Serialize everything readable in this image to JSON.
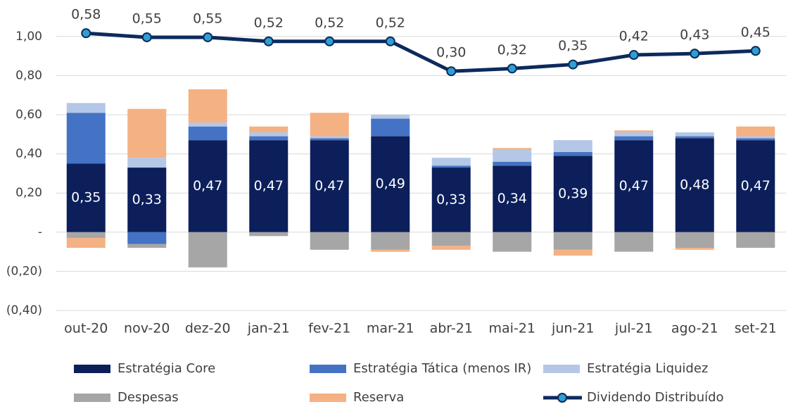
{
  "chart_data": {
    "type": "bar",
    "stacked": true,
    "categories": [
      "out-20",
      "nov-20",
      "dez-20",
      "jan-21",
      "fev-21",
      "mar-21",
      "abr-21",
      "mai-21",
      "jun-21",
      "jul-21",
      "ago-21",
      "set-21"
    ],
    "series": [
      {
        "name": "Estratégia Core",
        "color": "#0c1f5b",
        "values": [
          0.35,
          0.33,
          0.47,
          0.47,
          0.47,
          0.49,
          0.33,
          0.34,
          0.39,
          0.47,
          0.48,
          0.47
        ],
        "value_labels": [
          "0,35",
          "0,33",
          "0,47",
          "0,47",
          "0,47",
          "0,49",
          "0,33",
          "0,34",
          "0,39",
          "0,47",
          "0,48",
          "0,47"
        ]
      },
      {
        "name": "Estratégia Tática (menos IR)",
        "color": "#4472c4",
        "values": [
          0.26,
          -0.06,
          0.07,
          0.02,
          0.01,
          0.09,
          0.01,
          0.02,
          0.02,
          0.02,
          0.01,
          0.01
        ]
      },
      {
        "name": "Estratégia Liquidez",
        "color": "#b4c7e7",
        "values": [
          0.05,
          0.05,
          0.02,
          0.02,
          0.01,
          0.02,
          0.04,
          0.06,
          0.06,
          0.02,
          0.02,
          0.01
        ]
      },
      {
        "name": "Despesas",
        "color": "#a6a6a6",
        "values": [
          -0.03,
          -0.02,
          -0.18,
          -0.02,
          -0.09,
          -0.09,
          -0.07,
          -0.1,
          -0.09,
          -0.1,
          -0.08,
          -0.08
        ]
      },
      {
        "name": "Reserva",
        "color": "#f4b183",
        "values": [
          -0.05,
          0.25,
          0.17,
          0.03,
          0.12,
          -0.01,
          -0.02,
          0.01,
          -0.03,
          0.01,
          -0.01,
          0.05
        ]
      },
      {
        "name": "Dividendo Distribuído",
        "type": "line",
        "axis": "y2",
        "color": "#0c2a5c",
        "marker_color": "#2e9fd0",
        "values": [
          0.58,
          0.55,
          0.55,
          0.52,
          0.52,
          0.52,
          0.3,
          0.32,
          0.35,
          0.42,
          0.43,
          0.45
        ],
        "value_labels": [
          "0,58",
          "0,55",
          "0,55",
          "0,52",
          "0,52",
          "0,52",
          "0,30",
          "0,32",
          "0,35",
          "0,42",
          "0,43",
          "0,45"
        ]
      }
    ],
    "ylim": [
      -0.4,
      1.1
    ],
    "yticks": [
      {
        "value": -0.4,
        "label": "(0,40)"
      },
      {
        "value": -0.2,
        "label": "(0,20)"
      },
      {
        "value": 0,
        "label": "-"
      },
      {
        "value": 0.2,
        "label": "0,20"
      },
      {
        "value": 0.4,
        "label": "0,40"
      },
      {
        "value": 0.6,
        "label": "0,60"
      },
      {
        "value": 0.8,
        "label": "0,80"
      },
      {
        "value": 1.0,
        "label": "1,00"
      }
    ],
    "y2lim": [
      -1.46,
      0.7
    ],
    "grid": true,
    "legend": "bottom"
  }
}
